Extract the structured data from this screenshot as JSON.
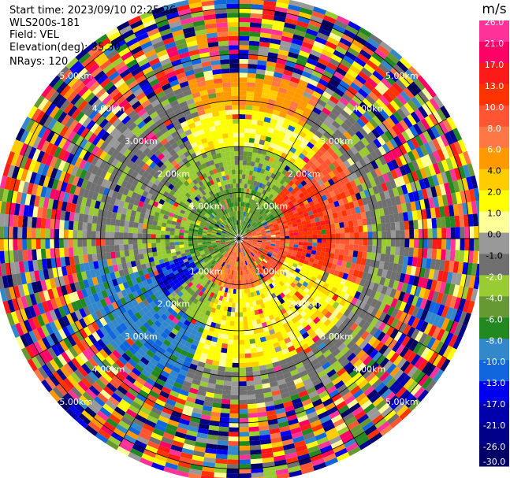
{
  "header": {
    "start_time": "Start time: 2023/09/10 02:25:26",
    "instrument": "WLS200s-181",
    "field": "Field: VEL",
    "elevation": "Elevation(deg): 35.30",
    "nrays": "NRays: 120"
  },
  "ring_labels": [
    "1.00km",
    "2.00km",
    "3.00km",
    "4.00km",
    "5.00km"
  ],
  "colorbar": {
    "unit": "m/s",
    "ticks": [
      "26.0",
      "21.0",
      "17.0",
      "13.0",
      "10.0",
      "8.0",
      "6.0",
      "4.0",
      "2.0",
      "1.0",
      "0.0",
      "-1.0",
      "-2.0",
      "-4.0",
      "-6.0",
      "-8.0",
      "-10.0",
      "-13.0",
      "-17.0",
      "-21.0",
      "-26.0",
      "-30.0"
    ],
    "colors": [
      "#ff3399",
      "#ff0066",
      "#ff1a1a",
      "#ff3300",
      "#ff5533",
      "#ff7744",
      "#ff9900",
      "#ffcc00",
      "#ffff00",
      "#ffff99",
      "#999999",
      "#707070",
      "#99cc33",
      "#669933",
      "#228822",
      "#3388cc",
      "#1166dd",
      "#0000ee",
      "#0000aa",
      "#000088",
      "#000066"
    ]
  },
  "chart_data": {
    "type": "heatmap",
    "field": "VEL",
    "unit": "m/s",
    "n_rays": 120,
    "elevation_deg": 35.3,
    "range_km": [
      0,
      5.3
    ],
    "range_rings_km": [
      1,
      2,
      3,
      4,
      5
    ]
  }
}
